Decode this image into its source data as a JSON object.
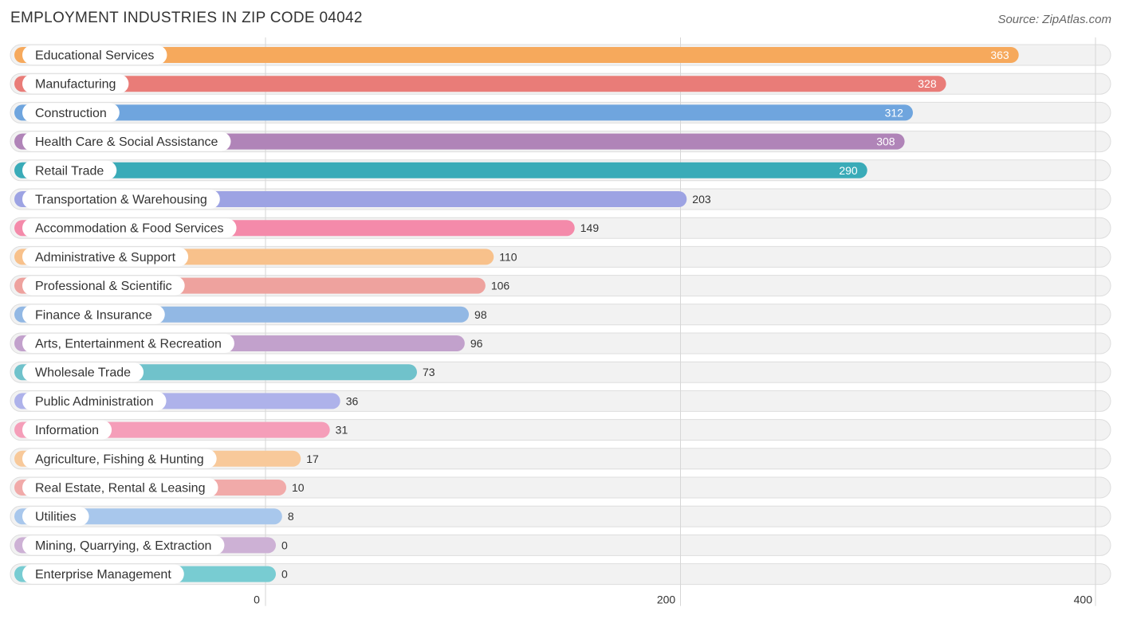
{
  "chart_data": {
    "type": "bar",
    "orientation": "horizontal",
    "title": "EMPLOYMENT INDUSTRIES IN ZIP CODE 04042",
    "source": "Source: ZipAtlas.com",
    "xlim": [
      0,
      400
    ],
    "ticks": [
      0,
      200,
      400
    ],
    "grid": true,
    "categories": [
      "Educational Services",
      "Manufacturing",
      "Construction",
      "Health Care & Social Assistance",
      "Retail Trade",
      "Transportation & Warehousing",
      "Accommodation & Food Services",
      "Administrative & Support",
      "Professional & Scientific",
      "Finance & Insurance",
      "Arts, Entertainment & Recreation",
      "Wholesale Trade",
      "Public Administration",
      "Information",
      "Agriculture, Fishing & Hunting",
      "Real Estate, Rental & Leasing",
      "Utilities",
      "Mining, Quarrying, & Extraction",
      "Enterprise Management"
    ],
    "values": [
      363,
      328,
      312,
      308,
      290,
      203,
      149,
      110,
      106,
      98,
      96,
      73,
      36,
      31,
      17,
      10,
      8,
      0,
      0
    ],
    "colors": [
      "#f6a95c",
      "#e97c78",
      "#6fa5de",
      "#b084b8",
      "#3aabb8",
      "#9da3e3",
      "#f48aaa",
      "#f8c18b",
      "#eea29e",
      "#92b8e4",
      "#c2a1cc",
      "#70c2cb",
      "#aeb2ea",
      "#f59eb9",
      "#f8c99a",
      "#f1aaa9",
      "#a8c7ec",
      "#cdb1d5",
      "#78ccd2"
    ]
  }
}
